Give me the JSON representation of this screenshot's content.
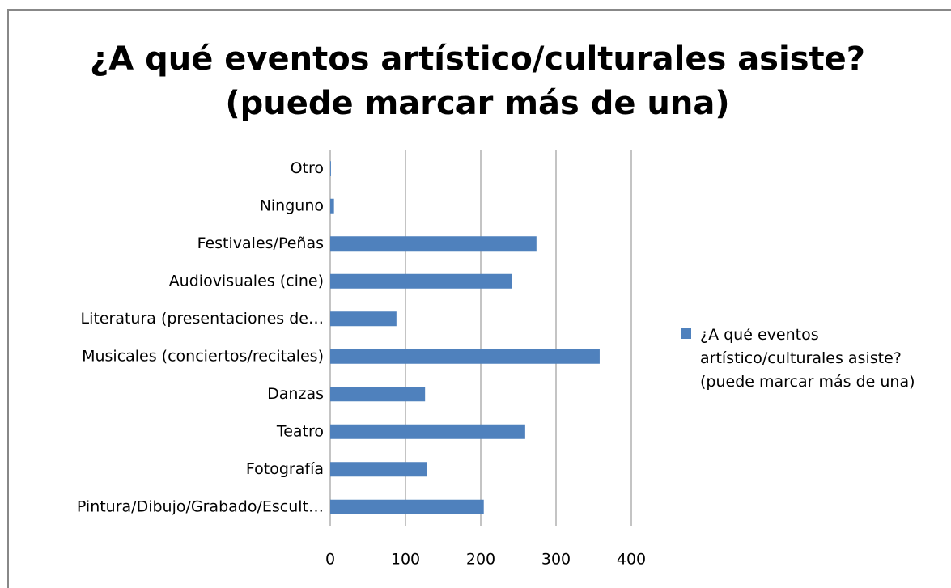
{
  "chart_data": {
    "type": "bar",
    "orientation": "horizontal",
    "title": [
      "¿A qué eventos artístico/culturales asiste?",
      "(puede marcar más de una)"
    ],
    "categories": [
      "Pintura/Dibujo/Grabado/Escult…",
      "Fotografía",
      "Teatro",
      "Danzas",
      "Musicales (conciertos/recitales)",
      "Literatura (presentaciones de…",
      "Audiovisuales (cine)",
      "Festivales/Peñas",
      "Ninguno",
      "Otro"
    ],
    "series": [
      {
        "name": "¿A qué eventos artístico/culturales asiste? (puede marcar más de una)",
        "color": "#4f81bd",
        "values": [
          204,
          128,
          259,
          126,
          358,
          88,
          241,
          274,
          5,
          1
        ]
      }
    ],
    "xlim": [
      0,
      400
    ],
    "xticks": [
      0,
      100,
      200,
      300,
      400
    ],
    "grid": true,
    "legend": "right"
  }
}
